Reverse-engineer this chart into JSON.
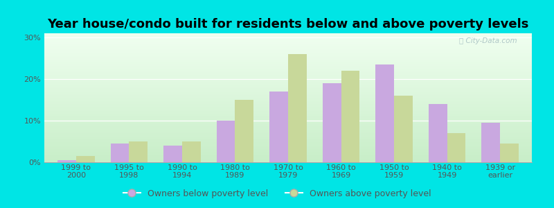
{
  "title": "Year house/condo built for residents below and above poverty levels",
  "categories": [
    "1999 to\n2000",
    "1995 to\n1998",
    "1990 to\n1994",
    "1980 to\n1989",
    "1970 to\n1979",
    "1960 to\n1969",
    "1950 to\n1959",
    "1940 to\n1949",
    "1939 or\nearlier"
  ],
  "below_poverty": [
    0.5,
    4.5,
    4.0,
    10.0,
    17.0,
    19.0,
    23.5,
    14.0,
    9.5
  ],
  "above_poverty": [
    1.5,
    5.0,
    5.0,
    15.0,
    26.0,
    22.0,
    16.0,
    7.0,
    4.5
  ],
  "below_color": "#c9a8e0",
  "above_color": "#c8d89a",
  "outer_background": "#00e5e5",
  "ylim": [
    0,
    31
  ],
  "yticks": [
    0,
    10,
    20,
    30
  ],
  "ytick_labels": [
    "0%",
    "10%",
    "20%",
    "30%"
  ],
  "legend_below": "Owners below poverty level",
  "legend_above": "Owners above poverty level",
  "title_fontsize": 13,
  "tick_fontsize": 8,
  "legend_fontsize": 9,
  "bar_width": 0.35
}
